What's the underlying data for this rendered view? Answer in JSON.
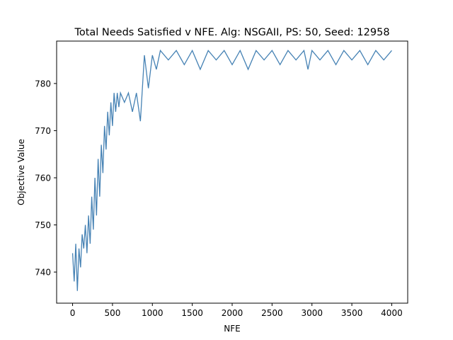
{
  "chart_data": {
    "type": "line",
    "title": "Total Needs Satisfied v NFE. Alg: NSGAII, PS: 50, Seed: 12958",
    "xlabel": "NFE",
    "ylabel": "Objective Value",
    "xlim": [
      -200,
      4200
    ],
    "ylim": [
      733.4,
      789
    ],
    "xticks": [
      0,
      500,
      1000,
      1500,
      2000,
      2500,
      3000,
      3500,
      4000
    ],
    "yticks": [
      740,
      750,
      760,
      770,
      780
    ],
    "grid": false,
    "series": [
      {
        "color": "#4682b4",
        "points": [
          [
            0,
            744
          ],
          [
            20,
            738
          ],
          [
            40,
            746
          ],
          [
            60,
            736
          ],
          [
            80,
            745
          ],
          [
            100,
            741
          ],
          [
            120,
            748
          ],
          [
            140,
            745
          ],
          [
            160,
            750
          ],
          [
            180,
            744
          ],
          [
            200,
            752
          ],
          [
            220,
            746
          ],
          [
            240,
            756
          ],
          [
            260,
            749
          ],
          [
            280,
            760
          ],
          [
            300,
            752
          ],
          [
            320,
            764
          ],
          [
            340,
            756
          ],
          [
            360,
            767
          ],
          [
            380,
            761
          ],
          [
            400,
            771
          ],
          [
            420,
            766
          ],
          [
            440,
            774
          ],
          [
            460,
            769
          ],
          [
            480,
            776
          ],
          [
            500,
            771
          ],
          [
            520,
            778
          ],
          [
            540,
            774
          ],
          [
            560,
            778
          ],
          [
            580,
            775
          ],
          [
            600,
            778
          ],
          [
            650,
            776
          ],
          [
            700,
            778
          ],
          [
            750,
            774
          ],
          [
            800,
            778
          ],
          [
            850,
            772
          ],
          [
            900,
            786
          ],
          [
            950,
            779
          ],
          [
            1000,
            786
          ],
          [
            1050,
            783
          ],
          [
            1100,
            787
          ],
          [
            1200,
            785
          ],
          [
            1300,
            787
          ],
          [
            1400,
            784
          ],
          [
            1500,
            787
          ],
          [
            1600,
            783
          ],
          [
            1700,
            787
          ],
          [
            1800,
            785
          ],
          [
            1900,
            787
          ],
          [
            2000,
            784
          ],
          [
            2100,
            787
          ],
          [
            2200,
            783
          ],
          [
            2300,
            787
          ],
          [
            2400,
            785
          ],
          [
            2500,
            787
          ],
          [
            2600,
            784
          ],
          [
            2700,
            787
          ],
          [
            2800,
            785
          ],
          [
            2900,
            787
          ],
          [
            2950,
            783
          ],
          [
            3000,
            787
          ],
          [
            3100,
            785
          ],
          [
            3200,
            787
          ],
          [
            3300,
            784
          ],
          [
            3400,
            787
          ],
          [
            3500,
            785
          ],
          [
            3600,
            787
          ],
          [
            3700,
            784
          ],
          [
            3800,
            787
          ],
          [
            3900,
            785
          ],
          [
            4000,
            787
          ]
        ]
      }
    ]
  }
}
